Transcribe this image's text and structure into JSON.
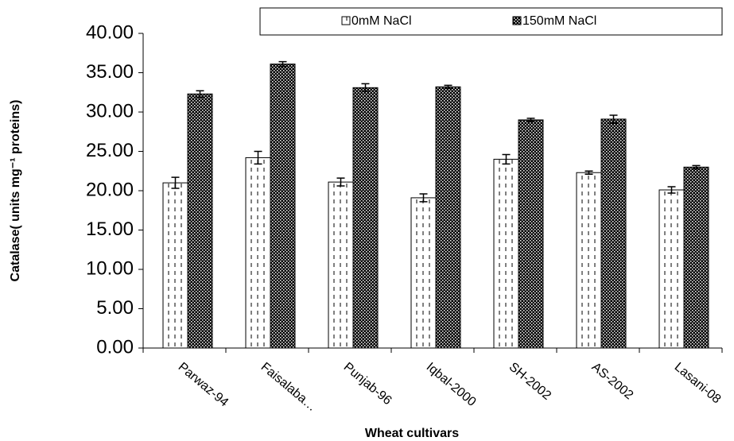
{
  "chart_data": {
    "type": "bar",
    "ylabel": "Catalase( units mg⁻¹ proteins)",
    "xlabel": "Wheat cultivars",
    "categories": [
      "Parwaz-94",
      "Faisalaba…",
      "Punjab-96",
      "Iqbal-2000",
      "SH-2002",
      "AS-2002",
      "Lasani-08"
    ],
    "series": [
      {
        "name": "0mM NaCl",
        "color": "#ffffff",
        "pattern": "dashes",
        "values": [
          21.0,
          24.2,
          21.1,
          19.1,
          24.0,
          22.3,
          20.1
        ],
        "errors": [
          0.7,
          0.8,
          0.5,
          0.5,
          0.6,
          0.2,
          0.4
        ]
      },
      {
        "name": "150mM NaCl",
        "color": "#000000",
        "pattern": "dots",
        "values": [
          32.3,
          36.1,
          33.1,
          33.2,
          29.0,
          29.1,
          23.0
        ],
        "errors": [
          0.4,
          0.3,
          0.5,
          0.2,
          0.2,
          0.5,
          0.2
        ]
      }
    ],
    "ylim": [
      0,
      40
    ],
    "yticks": [
      {
        "value": 0,
        "label": "0.00"
      },
      {
        "value": 5,
        "label": "5.00"
      },
      {
        "value": 10,
        "label": "10.00"
      },
      {
        "value": 15,
        "label": "15.00"
      },
      {
        "value": 20,
        "label": "20.00"
      },
      {
        "value": 25,
        "label": "25.00"
      },
      {
        "value": 30,
        "label": "30.00"
      },
      {
        "value": 35,
        "label": "35.00"
      },
      {
        "value": 40,
        "label": "40.00"
      }
    ],
    "legend": "top"
  }
}
